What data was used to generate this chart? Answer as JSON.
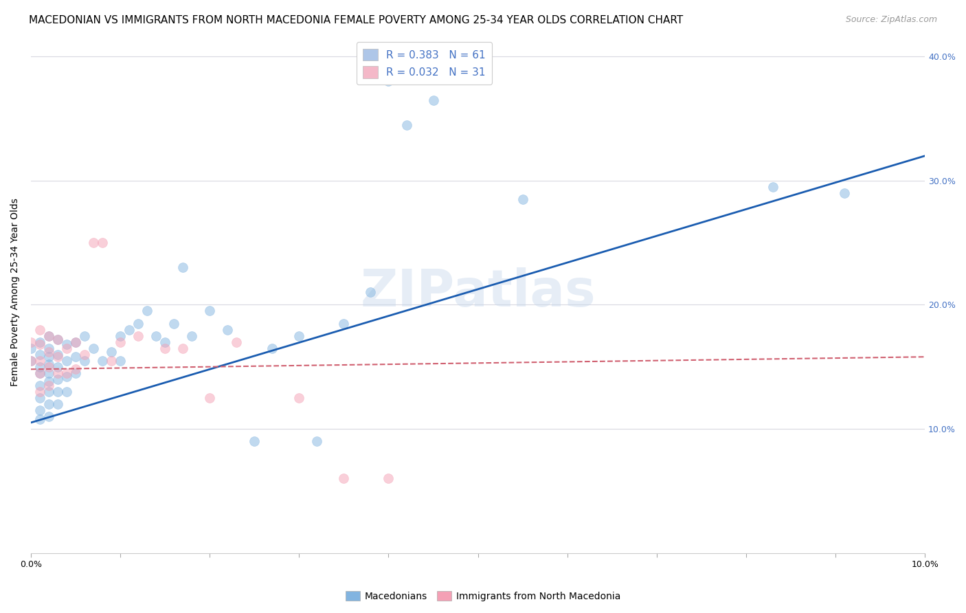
{
  "title": "MACEDONIAN VS IMMIGRANTS FROM NORTH MACEDONIA FEMALE POVERTY AMONG 25-34 YEAR OLDS CORRELATION CHART",
  "source": "Source: ZipAtlas.com",
  "ylabel": "Female Poverty Among 25-34 Year Olds",
  "y_ticks": [
    0.1,
    0.2,
    0.3,
    0.4
  ],
  "y_tick_labels": [
    "10.0%",
    "20.0%",
    "30.0%",
    "40.0%"
  ],
  "xlim": [
    0.0,
    0.1
  ],
  "ylim": [
    0.0,
    0.42
  ],
  "legend_entries": [
    {
      "label": "R = 0.383   N = 61",
      "color": "#aec6e8"
    },
    {
      "label": "R = 0.032   N = 31",
      "color": "#f4b8c8"
    }
  ],
  "watermark": "ZIPatlas",
  "blue_scatter_x": [
    0.0,
    0.0,
    0.001,
    0.001,
    0.001,
    0.001,
    0.001,
    0.001,
    0.001,
    0.001,
    0.002,
    0.002,
    0.002,
    0.002,
    0.002,
    0.002,
    0.002,
    0.002,
    0.002,
    0.003,
    0.003,
    0.003,
    0.003,
    0.003,
    0.003,
    0.004,
    0.004,
    0.004,
    0.004,
    0.005,
    0.005,
    0.005,
    0.006,
    0.006,
    0.007,
    0.008,
    0.009,
    0.01,
    0.01,
    0.011,
    0.012,
    0.013,
    0.014,
    0.015,
    0.016,
    0.017,
    0.018,
    0.02,
    0.022,
    0.025,
    0.027,
    0.03,
    0.032,
    0.035,
    0.038,
    0.04,
    0.042,
    0.045,
    0.055,
    0.083,
    0.091
  ],
  "blue_scatter_y": [
    0.165,
    0.155,
    0.17,
    0.16,
    0.15,
    0.145,
    0.135,
    0.125,
    0.115,
    0.108,
    0.175,
    0.165,
    0.158,
    0.152,
    0.145,
    0.138,
    0.13,
    0.12,
    0.11,
    0.172,
    0.16,
    0.15,
    0.14,
    0.13,
    0.12,
    0.168,
    0.155,
    0.142,
    0.13,
    0.17,
    0.158,
    0.145,
    0.175,
    0.155,
    0.165,
    0.155,
    0.162,
    0.175,
    0.155,
    0.18,
    0.185,
    0.195,
    0.175,
    0.17,
    0.185,
    0.23,
    0.175,
    0.195,
    0.18,
    0.09,
    0.165,
    0.175,
    0.09,
    0.185,
    0.21,
    0.38,
    0.345,
    0.365,
    0.285,
    0.295,
    0.29
  ],
  "pink_scatter_x": [
    0.0,
    0.0,
    0.001,
    0.001,
    0.001,
    0.001,
    0.001,
    0.002,
    0.002,
    0.002,
    0.002,
    0.003,
    0.003,
    0.003,
    0.004,
    0.004,
    0.005,
    0.005,
    0.006,
    0.007,
    0.008,
    0.009,
    0.01,
    0.012,
    0.015,
    0.017,
    0.02,
    0.023,
    0.03,
    0.035,
    0.04
  ],
  "pink_scatter_y": [
    0.17,
    0.155,
    0.18,
    0.168,
    0.155,
    0.145,
    0.13,
    0.175,
    0.162,
    0.15,
    0.135,
    0.172,
    0.158,
    0.145,
    0.165,
    0.145,
    0.17,
    0.148,
    0.16,
    0.25,
    0.25,
    0.155,
    0.17,
    0.175,
    0.165,
    0.165,
    0.125,
    0.17,
    0.125,
    0.06,
    0.06
  ],
  "blue_line_x": [
    0.0,
    0.1
  ],
  "blue_line_y": [
    0.105,
    0.32
  ],
  "pink_line_x": [
    0.0,
    0.1
  ],
  "pink_line_y": [
    0.148,
    0.158
  ],
  "scatter_size": 100,
  "scatter_alpha": 0.5,
  "blue_scatter_color": "#82b4e0",
  "pink_scatter_color": "#f4a0b5",
  "blue_line_color": "#1a5cb0",
  "pink_line_color": "#d06070",
  "grid_color": "#d8d8e0",
  "background_color": "#ffffff",
  "title_fontsize": 11,
  "source_fontsize": 9,
  "axis_label_fontsize": 10,
  "tick_label_fontsize": 9,
  "legend_fontsize": 11,
  "right_tick_color": "#4472c4"
}
